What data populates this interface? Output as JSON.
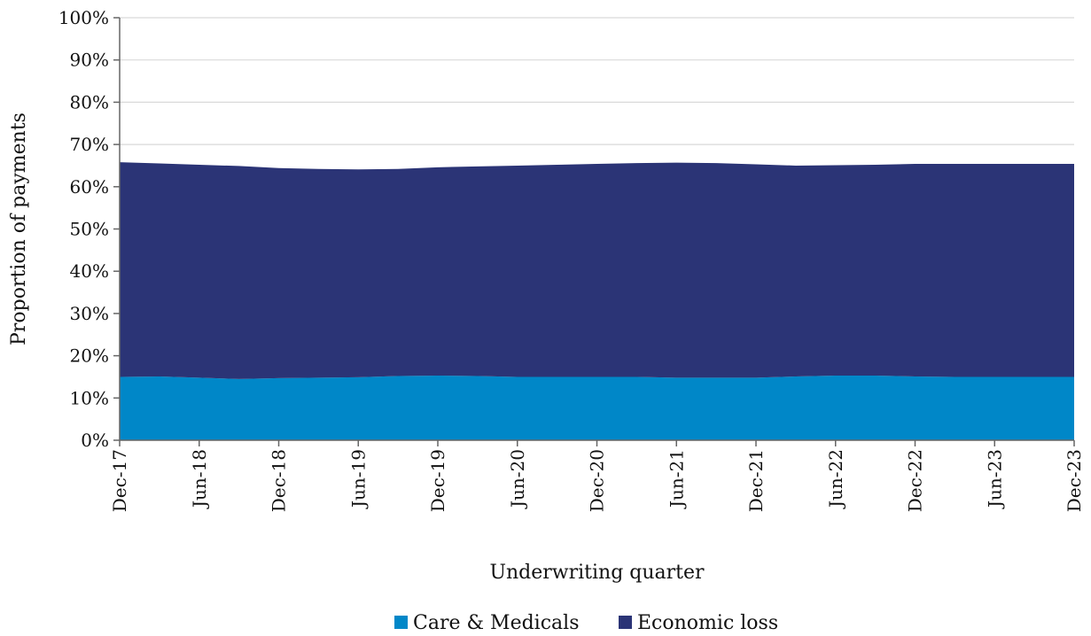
{
  "chart_data": {
    "type": "area",
    "stacked": true,
    "xlabel": "Underwriting quarter",
    "ylabel": "Proportion of payments",
    "ylim": [
      0,
      100
    ],
    "yticks": [
      "0%",
      "10%",
      "20%",
      "30%",
      "40%",
      "50%",
      "60%",
      "70%",
      "80%",
      "90%",
      "100%"
    ],
    "x_tick_labels": [
      "Dec-17",
      "Jun-18",
      "Dec-18",
      "Jun-19",
      "Dec-19",
      "Jun-20",
      "Dec-20",
      "Jun-21",
      "Dec-21",
      "Jun-22",
      "Dec-22",
      "Jun-23",
      "Dec-23"
    ],
    "grid": "horizontal",
    "legend_position": "bottom-center",
    "categories": [
      "Dec-17",
      "Mar-18",
      "Jun-18",
      "Sep-18",
      "Dec-18",
      "Mar-19",
      "Jun-19",
      "Sep-19",
      "Dec-19",
      "Mar-20",
      "Jun-20",
      "Sep-20",
      "Dec-20",
      "Mar-21",
      "Jun-21",
      "Sep-21",
      "Dec-21",
      "Mar-22",
      "Jun-22",
      "Sep-22",
      "Dec-22",
      "Mar-23",
      "Jun-23",
      "Sep-23",
      "Dec-23"
    ],
    "series": [
      {
        "name": "Care & Medicals",
        "color": "#0087c8",
        "values": [
          15.0,
          15.1,
          14.8,
          14.5,
          14.7,
          14.8,
          14.9,
          15.2,
          15.3,
          15.2,
          15.0,
          15.0,
          15.0,
          15.0,
          14.8,
          14.8,
          14.8,
          15.1,
          15.3,
          15.3,
          15.1,
          15.0,
          15.0,
          15.0,
          15.0
        ]
      },
      {
        "name": "Economic loss",
        "color": "#2b3476",
        "values": [
          50.8,
          50.4,
          50.4,
          50.4,
          49.7,
          49.4,
          49.2,
          49.0,
          49.3,
          49.6,
          50.0,
          50.2,
          50.4,
          50.6,
          50.9,
          50.8,
          50.5,
          49.9,
          49.8,
          49.9,
          50.3,
          50.4,
          50.4,
          50.4,
          50.4
        ]
      }
    ]
  }
}
